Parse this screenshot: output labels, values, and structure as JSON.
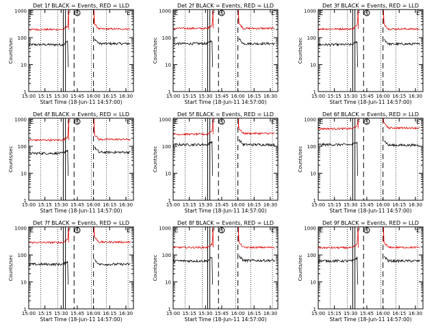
{
  "figure": {
    "colors": {
      "events": "#000000",
      "lld": "#e00000",
      "axes": "#000000"
    },
    "common": {
      "xlabel": "Start Time (18-Jun-11 14:57:00)",
      "ylabel": "Counts/sec",
      "x_ticks": [
        "15:00",
        "15:15",
        "15:30",
        "15:45",
        "16:00",
        "16:15",
        "16:30"
      ],
      "x_tick_minutes": [
        0,
        15,
        30,
        45,
        60,
        75,
        90
      ],
      "y_ticks": [
        "1",
        "10",
        "100",
        "1000"
      ],
      "y_tick_values": [
        1,
        10,
        100,
        1000
      ],
      "yscale": "log",
      "ylim": [
        1,
        1100
      ],
      "xlim_minutes": [
        0,
        97
      ],
      "markers": {
        "F_time": 37,
        "S_time": 45,
        "E_time": 92,
        "E_time_start": 1,
        "labels": {
          "F": "F",
          "S": "S",
          "E": "E"
        }
      },
      "vertical_lines": {
        "dotted": [
          11,
          27,
          58,
          72,
          92
        ],
        "dashed": [
          42,
          60
        ],
        "solid_double": [
          32,
          34
        ]
      },
      "gap_minutes": [
        38,
        60
      ]
    },
    "chart_data": [
      {
        "type": "line",
        "title": "Det 1f BLACK = Events, RED = LLD",
        "series": [
          {
            "name": "Events",
            "level_before": 55,
            "level_after": 60
          },
          {
            "name": "LLD",
            "level_before": 200,
            "level_after": 210
          }
        ]
      },
      {
        "type": "line",
        "title": "Det 2f BLACK = Events, RED = LLD",
        "series": [
          {
            "name": "Events",
            "level_before": 60,
            "level_after": 60
          },
          {
            "name": "LLD",
            "level_before": 220,
            "level_after": 220
          }
        ]
      },
      {
        "type": "line",
        "title": "Det 3f BLACK = Events, RED = LLD",
        "series": [
          {
            "name": "Events",
            "level_before": 55,
            "level_after": 58
          },
          {
            "name": "LLD",
            "level_before": 210,
            "level_after": 210
          }
        ]
      },
      {
        "type": "line",
        "title": "Det 4f BLACK = Events, RED = LLD",
        "series": [
          {
            "name": "Events",
            "level_before": 55,
            "level_after": 60
          },
          {
            "name": "LLD",
            "level_before": 170,
            "level_after": 180
          }
        ]
      },
      {
        "type": "line",
        "title": "Det 5f BLACK = Events, RED = LLD",
        "series": [
          {
            "name": "Events",
            "level_before": 115,
            "level_after": 115
          },
          {
            "name": "LLD",
            "level_before": 280,
            "level_after": 300
          }
        ]
      },
      {
        "type": "line",
        "title": "Det 6f BLACK = Events, RED = LLD",
        "series": [
          {
            "name": "Events",
            "level_before": 115,
            "level_after": 110
          },
          {
            "name": "LLD",
            "level_before": 450,
            "level_after": 480
          }
        ]
      },
      {
        "type": "line",
        "title": "Det 7f BLACK = Events, RED = LLD",
        "series": [
          {
            "name": "Events",
            "level_before": 45,
            "level_after": 45
          },
          {
            "name": "LLD",
            "level_before": 290,
            "level_after": 300
          }
        ]
      },
      {
        "type": "line",
        "title": "Det 8f BLACK = Events, RED = LLD",
        "series": [
          {
            "name": "Events",
            "level_before": 60,
            "level_after": 62
          },
          {
            "name": "LLD",
            "level_before": 190,
            "level_after": 190
          }
        ]
      },
      {
        "type": "line",
        "title": "Det 9f BLACK = Events, RED = LLD",
        "series": [
          {
            "name": "Events",
            "level_before": 60,
            "level_after": 60
          },
          {
            "name": "LLD",
            "level_before": 185,
            "level_after": 190
          }
        ]
      }
    ]
  }
}
